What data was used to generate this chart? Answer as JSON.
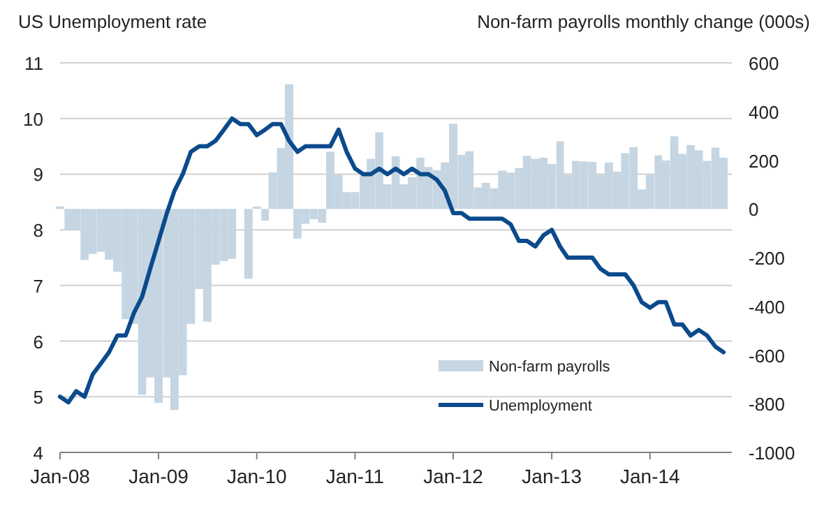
{
  "chart_data": {
    "type": "bar",
    "ylabel": "US Unemployment  rate",
    "y2label": "Non-farm payrolls monthly change (000s)",
    "xlim": [
      "2008-01",
      "2014-11"
    ],
    "x": [
      "2008-01",
      "2008-02",
      "2008-03",
      "2008-04",
      "2008-05",
      "2008-06",
      "2008-07",
      "2008-08",
      "2008-09",
      "2008-10",
      "2008-11",
      "2008-12",
      "2009-01",
      "2009-02",
      "2009-03",
      "2009-04",
      "2009-05",
      "2009-06",
      "2009-07",
      "2009-08",
      "2009-09",
      "2009-10",
      "2009-11",
      "2009-12",
      "2010-01",
      "2010-02",
      "2010-03",
      "2010-04",
      "2010-05",
      "2010-06",
      "2010-07",
      "2010-08",
      "2010-09",
      "2010-10",
      "2010-11",
      "2010-12",
      "2011-01",
      "2011-02",
      "2011-03",
      "2011-04",
      "2011-05",
      "2011-06",
      "2011-07",
      "2011-08",
      "2011-09",
      "2011-10",
      "2011-11",
      "2011-12",
      "2012-01",
      "2012-02",
      "2012-03",
      "2012-04",
      "2012-05",
      "2012-06",
      "2012-07",
      "2012-08",
      "2012-09",
      "2012-10",
      "2012-11",
      "2012-12",
      "2013-01",
      "2013-02",
      "2013-03",
      "2013-04",
      "2013-05",
      "2013-06",
      "2013-07",
      "2013-08",
      "2013-09",
      "2013-10",
      "2013-11",
      "2013-12",
      "2014-01",
      "2014-02",
      "2014-03",
      "2014-04",
      "2014-05",
      "2014-06",
      "2014-07",
      "2014-08",
      "2014-09",
      "2014-10"
    ],
    "xticks": [
      {
        "value": "2008-01",
        "label": "Jan-08"
      },
      {
        "value": "2009-01",
        "label": "Jan-09"
      },
      {
        "value": "2010-01",
        "label": "Jan-10"
      },
      {
        "value": "2011-01",
        "label": "Jan-11"
      },
      {
        "value": "2012-01",
        "label": "Jan-12"
      },
      {
        "value": "2013-01",
        "label": "Jan-13"
      },
      {
        "value": "2014-01",
        "label": "Jan-14"
      }
    ],
    "ylim": [
      4,
      11
    ],
    "yticks": [
      4,
      5,
      6,
      7,
      8,
      9,
      10,
      11
    ],
    "y2lim": [
      -1000,
      600
    ],
    "y2ticks": [
      -1000,
      -800,
      -600,
      -400,
      -200,
      0,
      200,
      400,
      600
    ],
    "grid": "y",
    "legend": "bottom right",
    "series": [
      {
        "name": "Non-farm payrolls",
        "axis": "y2",
        "color": "#c5d5e2",
        "values": [
          10,
          -86,
          -86,
          -210,
          -185,
          -176,
          -208,
          -258,
          -453,
          -472,
          -763,
          -692,
          -797,
          -692,
          -826,
          -683,
          -472,
          -329,
          -463,
          -229,
          -214,
          -205,
          null,
          -287,
          10,
          -48,
          150,
          250,
          512,
          -122,
          -61,
          -42,
          -57,
          235,
          140,
          69,
          69,
          140,
          206,
          315,
          101,
          216,
          101,
          130,
          210,
          172,
          159,
          191,
          350,
          222,
          237,
          88,
          107,
          84,
          157,
          149,
          168,
          218,
          206,
          210,
          184,
          277,
          140,
          197,
          195,
          193,
          141,
          191,
          153,
          229,
          254,
          80,
          140,
          220,
          199,
          298,
          226,
          262,
          241,
          197,
          252,
          210
        ]
      },
      {
        "name": "Unemployment",
        "type": "line",
        "color": "#0b4a8b",
        "values": [
          5.0,
          4.9,
          5.1,
          5.0,
          5.4,
          5.6,
          5.8,
          6.1,
          6.1,
          6.5,
          6.8,
          7.3,
          7.8,
          8.3,
          8.7,
          9.0,
          9.4,
          9.5,
          9.5,
          9.6,
          9.8,
          10.0,
          9.9,
          9.9,
          9.7,
          9.8,
          9.9,
          9.9,
          9.6,
          9.4,
          9.5,
          9.5,
          9.5,
          9.5,
          9.8,
          9.4,
          9.1,
          9.0,
          9.0,
          9.1,
          9.0,
          9.1,
          9.0,
          9.1,
          9.0,
          9.0,
          8.9,
          8.7,
          8.3,
          8.3,
          8.2,
          8.2,
          8.2,
          8.2,
          8.2,
          8.1,
          7.8,
          7.8,
          7.7,
          7.9,
          8.0,
          7.7,
          7.5,
          7.5,
          7.5,
          7.5,
          7.3,
          7.2,
          7.2,
          7.2,
          7.0,
          6.7,
          6.6,
          6.7,
          6.7,
          6.3,
          6.3,
          6.1,
          6.2,
          6.1,
          5.9,
          5.8
        ]
      }
    ]
  }
}
